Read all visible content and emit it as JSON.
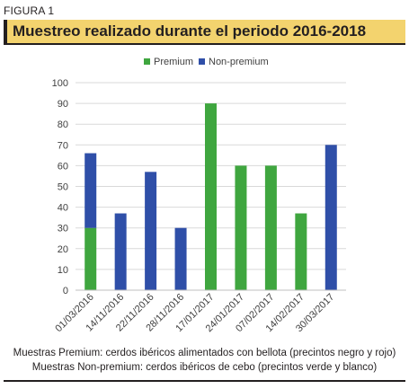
{
  "figure_label": "FIGURA 1",
  "title": "Muestreo realizado durante el periodo 2016-2018",
  "captions": [
    "Muestras Premium: cerdos ibéricos alimentados con bellota (precintos negro y rojo)",
    "Muestras Non-premium: cerdos ibéricos de cebo (precintos verde y blanco)"
  ],
  "colors": {
    "premium": "#3fa63f",
    "non_premium": "#2f4fa8",
    "title_bg": "#f3d36e"
  },
  "chart_data": {
    "type": "bar",
    "stacked": true,
    "categories": [
      "01/03/2016",
      "14/11/2016",
      "22/11/2016",
      "28/11/2016",
      "17/01/2017",
      "24/01/2017",
      "07/02/2017",
      "14/02/2017",
      "30/03/2017"
    ],
    "series": [
      {
        "name": "Premium",
        "color": "#3fa63f",
        "values": [
          30,
          0,
          0,
          0,
          90,
          60,
          60,
          37,
          0
        ]
      },
      {
        "name": "Non-premium",
        "color": "#2f4fa8",
        "values": [
          36,
          37,
          57,
          30,
          0,
          0,
          0,
          0,
          70
        ]
      }
    ],
    "yticks": [
      "0",
      "10",
      "20",
      "30",
      "40",
      "50",
      "60",
      "70",
      "80",
      "90",
      "100"
    ],
    "ylim": [
      0,
      100
    ],
    "grid": true,
    "legend_position": "top"
  }
}
